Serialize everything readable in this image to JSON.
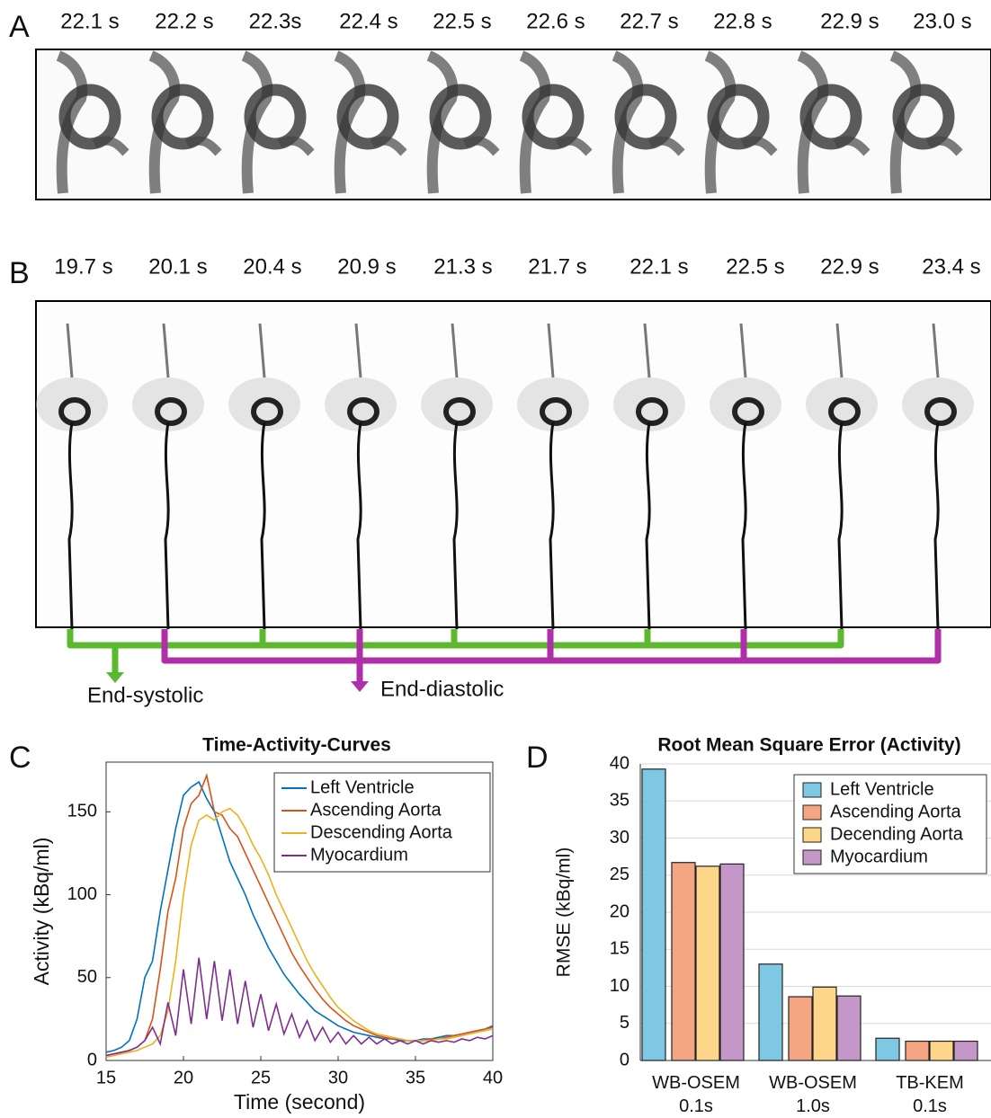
{
  "panels": {
    "A": {
      "label": "A",
      "times": [
        "22.1 s",
        "22.2 s",
        "22.3s",
        "22.4 s",
        "22.5 s",
        "22.6 s",
        "22.7 s",
        "22.8 s",
        "22.9 s",
        "23.0 s"
      ]
    },
    "B": {
      "label": "B",
      "times": [
        "19.7 s",
        "20.1 s",
        "20.4 s",
        "20.9 s",
        "21.3 s",
        "21.7 s",
        "22.1 s",
        "22.5 s",
        "22.9 s",
        "23.4 s"
      ],
      "annotations": [
        "End-systolic",
        "End-diastolic"
      ]
    },
    "C": {
      "label": "C"
    },
    "D": {
      "label": "D"
    }
  },
  "chart_data": [
    {
      "type": "line",
      "title": "Time-Activity-Curves",
      "x_label": "Time (second)",
      "y_label": "Activity (kBq/ml)",
      "x": [
        15,
        15.5,
        16,
        16.5,
        17,
        17.5,
        18,
        18.5,
        19,
        19.5,
        20,
        20.5,
        21,
        21.5,
        22,
        22.5,
        23,
        23.5,
        24,
        24.5,
        25,
        25.5,
        26,
        26.5,
        27,
        27.5,
        28,
        28.5,
        29,
        29.5,
        30,
        30.5,
        31,
        31.5,
        32,
        32.5,
        33,
        33.5,
        34,
        34.5,
        35,
        35.5,
        36,
        36.5,
        37,
        37.5,
        38,
        38.5,
        39,
        39.5,
        40
      ],
      "xlim": [
        15,
        40
      ],
      "xticks": [
        15,
        20,
        25,
        30,
        35,
        40
      ],
      "ylim": [
        0,
        180
      ],
      "yticks": [
        0,
        50,
        100,
        150
      ],
      "legend": "upper-right",
      "series": [
        {
          "name": "Left Ventricle",
          "color": "#0072bd",
          "values": [
            5,
            6,
            8,
            12,
            25,
            50,
            60,
            90,
            115,
            140,
            160,
            165,
            168,
            158,
            150,
            135,
            120,
            110,
            100,
            88,
            78,
            68,
            60,
            52,
            46,
            40,
            35,
            30,
            27,
            24,
            21,
            19,
            17,
            16,
            15,
            14,
            13,
            13,
            12,
            12,
            12,
            13,
            13,
            14,
            15,
            15,
            16,
            17,
            18,
            19,
            21
          ]
        },
        {
          "name": "Ascending Aorta",
          "color": "#d95319",
          "values": [
            3,
            4,
            5,
            6,
            8,
            12,
            25,
            55,
            90,
            110,
            140,
            155,
            160,
            172,
            150,
            148,
            140,
            135,
            125,
            115,
            105,
            95,
            85,
            75,
            65,
            57,
            50,
            43,
            37,
            32,
            28,
            24,
            21,
            19,
            17,
            15,
            14,
            13,
            13,
            12,
            12,
            12,
            13,
            13,
            14,
            15,
            16,
            17,
            18,
            19,
            20
          ]
        },
        {
          "name": "Descending Aorta",
          "color": "#edb120",
          "values": [
            2,
            3,
            4,
            5,
            6,
            8,
            10,
            15,
            30,
            60,
            100,
            130,
            145,
            148,
            145,
            150,
            152,
            148,
            140,
            130,
            122,
            112,
            100,
            90,
            80,
            70,
            60,
            52,
            45,
            38,
            32,
            28,
            24,
            21,
            18,
            16,
            15,
            14,
            13,
            12,
            12,
            12,
            12,
            13,
            13,
            14,
            15,
            16,
            17,
            18,
            19
          ]
        },
        {
          "name": "Myocardium",
          "color": "#7e2f8e",
          "values": [
            3,
            4,
            5,
            6,
            8,
            12,
            20,
            10,
            35,
            15,
            55,
            22,
            62,
            25,
            60,
            24,
            55,
            22,
            48,
            20,
            40,
            18,
            34,
            16,
            28,
            14,
            24,
            12,
            20,
            11,
            17,
            10,
            15,
            10,
            14,
            10,
            13,
            10,
            12,
            10,
            12,
            10,
            12,
            11,
            12,
            11,
            13,
            12,
            14,
            13,
            15
          ]
        }
      ]
    },
    {
      "type": "bar",
      "title": "Root Mean Square Error (Activity)",
      "y_label": "RMSE (kBq/ml)",
      "categories": [
        "WB-OSEM\n0.1s",
        "WB-OSEM\n1.0s",
        "TB-KEM\n0.1s"
      ],
      "ylim": [
        0,
        40
      ],
      "yticks": [
        0,
        5,
        10,
        15,
        20,
        25,
        30,
        35,
        40
      ],
      "grid": true,
      "legend": "upper-right",
      "series": [
        {
          "name": "Left Ventricle",
          "color": "#7ec8e3",
          "values": [
            39.3,
            13,
            3
          ]
        },
        {
          "name": "Ascending Aorta",
          "color": "#f4a582",
          "values": [
            26.7,
            8.6,
            2.6
          ]
        },
        {
          "name": "Decending Aorta",
          "color": "#fdd68a",
          "values": [
            26.2,
            9.9,
            2.6
          ]
        },
        {
          "name": "Myocardium",
          "color": "#c596c8",
          "values": [
            26.5,
            8.7,
            2.6
          ]
        }
      ]
    }
  ]
}
